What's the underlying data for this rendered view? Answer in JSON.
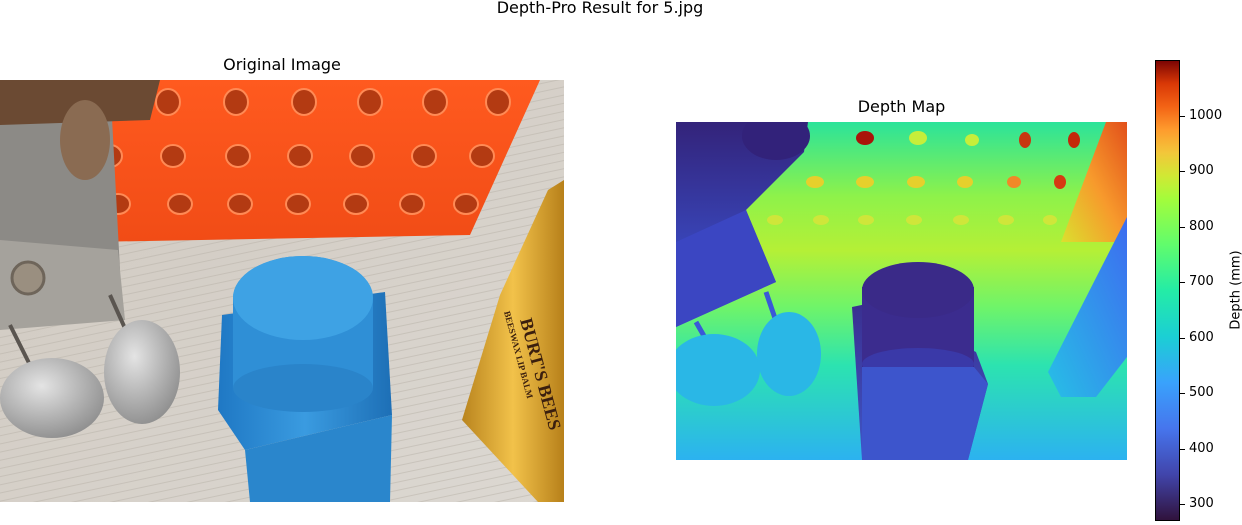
{
  "figure": {
    "title": "Depth-Pro Result for 5.jpg"
  },
  "panels": {
    "original_title": "Original Image",
    "depth_title": "Depth Map"
  },
  "colorbar": {
    "label": "Depth (mm)",
    "min": 270,
    "max": 1100,
    "ticks": [
      "300",
      "400",
      "500",
      "600",
      "700",
      "800",
      "900",
      "1000"
    ],
    "colormap": "turbo"
  },
  "original_image": {
    "lip_balm_text_1": "BURT'S BEES",
    "lip_balm_text_2": "BEESWAX LIP BALM"
  },
  "colors": {
    "orange_rack": "#f5531c",
    "blue_block": "#2e8fd6",
    "floor": "#d8d3cc"
  }
}
